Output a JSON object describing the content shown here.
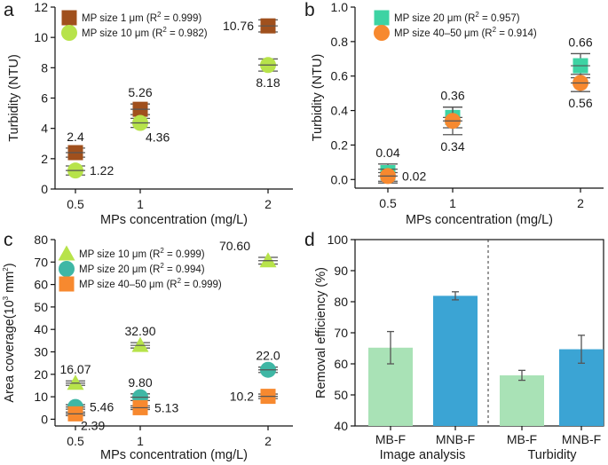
{
  "chart_data": [
    {
      "panel": "a",
      "type": "scatter",
      "xlabel": "MPs concentration (mg/L)",
      "ylabel": "Turbidity (NTU)",
      "x_ticks": [
        "0.5",
        "1",
        "2"
      ],
      "ylim": [
        0,
        12
      ],
      "y_ticks": [
        "0",
        "2",
        "4",
        "6",
        "8",
        "10",
        "12"
      ],
      "legend_position": "top-left",
      "series": [
        {
          "name": "MP size 1 μm",
          "r2_prefix": "(R",
          "r2_suffix": " = 0.999)",
          "marker": "square",
          "color": "#a0501d",
          "values": [
            2.4,
            5.26,
            10.76
          ],
          "labels": [
            "2.4",
            "5.26",
            "10.76"
          ],
          "errors": [
            0.3,
            0.35,
            0.4
          ],
          "label_pos": [
            "above",
            "above",
            "left"
          ]
        },
        {
          "name": "MP size 10 μm",
          "r2_prefix": "(R",
          "r2_suffix": " = 0.982)",
          "marker": "circle",
          "color": "#b7e34a",
          "values": [
            1.22,
            4.36,
            8.18
          ],
          "labels": [
            "1.22",
            "4.36",
            "8.18"
          ],
          "errors": [
            0.3,
            0.3,
            0.4
          ],
          "label_pos": [
            "right",
            "below-right",
            "below"
          ]
        }
      ]
    },
    {
      "panel": "b",
      "type": "scatter",
      "xlabel": "MPs concentration (mg/L)",
      "ylabel": "Turbidity (NTU)",
      "x_ticks": [
        "0.5",
        "1",
        "2"
      ],
      "ylim": [
        -0.05,
        1.0
      ],
      "y_ticks": [
        "0.0",
        "0.2",
        "0.4",
        "0.6",
        "0.8",
        "1.0"
      ],
      "legend_position": "top-left",
      "series": [
        {
          "name": "MP size 20 μm",
          "r2_prefix": "(R",
          "r2_suffix": " = 0.957)",
          "marker": "square",
          "color": "#3dd3a3",
          "values": [
            0.04,
            0.36,
            0.66
          ],
          "labels": [
            "0.04",
            "0.36",
            "0.66"
          ],
          "errors": [
            0.05,
            0.06,
            0.07
          ],
          "label_pos": [
            "above",
            "above",
            "above"
          ]
        },
        {
          "name": "MP size 40–50 μm",
          "r2_prefix": "(R",
          "r2_suffix": " = 0.914)",
          "marker": "circle",
          "color": "#f7892f",
          "values": [
            0.02,
            0.34,
            0.56
          ],
          "labels": [
            "0.02",
            "0.34",
            "0.56"
          ],
          "errors": [
            0.04,
            0.08,
            0.05
          ],
          "label_pos": [
            "right",
            "below",
            "below"
          ]
        }
      ]
    },
    {
      "panel": "c",
      "type": "scatter",
      "xlabel": "MPs concentration (mg/L)",
      "ylabel_main": "Area coverage(10",
      "ylabel_exp": "3",
      "ylabel_unit": " mm",
      "ylabel_exp2": "2",
      "ylabel_end": ")",
      "x_ticks": [
        "0.5",
        "1",
        "2"
      ],
      "ylim": [
        -3,
        80
      ],
      "y_ticks": [
        "0",
        "10",
        "20",
        "30",
        "40",
        "50",
        "60",
        "70",
        "80"
      ],
      "legend_position": "top-left",
      "series": [
        {
          "name": "MP size 10 μm",
          "r2_prefix": "(R",
          "r2_suffix": " = 0.999)",
          "marker": "triangle",
          "color": "#b7e34a",
          "values": [
            16.07,
            32.9,
            70.6
          ],
          "labels": [
            "16.07",
            "32.90",
            "70.60"
          ],
          "errors": [
            1.0,
            1.2,
            1.5
          ],
          "label_pos": [
            "above",
            "above",
            "above-left"
          ]
        },
        {
          "name": "MP size 20 μm",
          "r2_prefix": "(R",
          "r2_suffix": " = 0.994)",
          "marker": "circle",
          "color": "#3fb7a5",
          "values": [
            5.46,
            9.8,
            22.0
          ],
          "labels": [
            "5.46",
            "9.80",
            "22.0"
          ],
          "errors": [
            1.0,
            1.5,
            1.2
          ],
          "label_pos": [
            "right",
            "above",
            "above"
          ]
        },
        {
          "name": "MP size 40–50 μm",
          "r2_prefix": "(R",
          "r2_suffix": " = 0.999)",
          "marker": "square",
          "color": "#f7892f",
          "values": [
            2.39,
            5.13,
            10.2
          ],
          "labels": [
            "2.39",
            "5.13",
            "10.2"
          ],
          "errors": [
            0.8,
            0.8,
            1.0
          ],
          "label_pos": [
            "below-right",
            "right",
            "left"
          ]
        }
      ]
    },
    {
      "panel": "d",
      "type": "bar",
      "ylabel": "Removal efficiency (%)",
      "ylim": [
        40,
        100
      ],
      "y_ticks": [
        "40",
        "50",
        "60",
        "70",
        "80",
        "90",
        "100"
      ],
      "categories": [
        "MB-F",
        "MNB-F",
        "MB-F",
        "MNB-F"
      ],
      "values": [
        65.2,
        81.9,
        56.3,
        64.7
      ],
      "errors": [
        5.2,
        1.3,
        1.6,
        4.5
      ],
      "colors": [
        "#a9e2b6",
        "#3ba4d4",
        "#a9e2b6",
        "#3ba4d4"
      ],
      "groups": [
        "Image analysis",
        "Turbidity"
      ]
    }
  ]
}
